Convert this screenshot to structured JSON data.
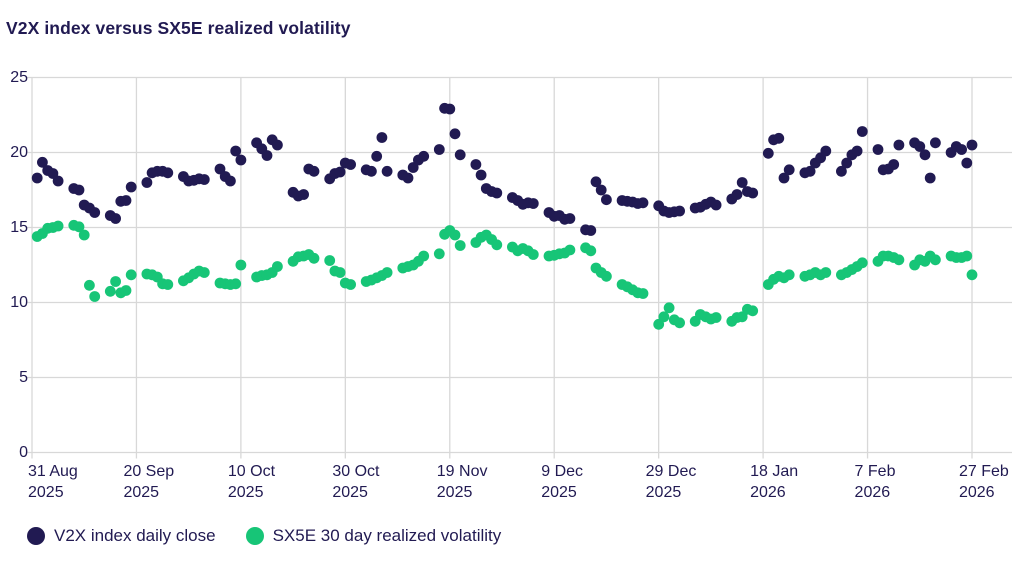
{
  "title": "V2X index versus SX5E realized volatility",
  "legend": [
    {
      "label": "V2X index daily close",
      "color": "#211a52"
    },
    {
      "label": "SX5E 30 day realized volatility",
      "color": "#17c577"
    }
  ],
  "colors": {
    "v2x": "#211a52",
    "sx5e": "#17c577",
    "grid": "#d8d8d8",
    "text": "#211a52",
    "background": "#ffffff"
  },
  "chart_data": {
    "type": "scatter",
    "title": "V2X index versus SX5E realized volatility",
    "xlabel": "",
    "ylabel": "",
    "ylim": [
      0,
      25
    ],
    "y_ticks": [
      0,
      5,
      10,
      15,
      20,
      25
    ],
    "grid": true,
    "legend_position": "bottom-left",
    "x_ticks": [
      {
        "date": "2025-08-31",
        "line1": "31 Aug",
        "line2": "2025"
      },
      {
        "date": "2025-09-20",
        "line1": "20 Sep",
        "line2": "2025"
      },
      {
        "date": "2025-10-10",
        "line1": "10 Oct",
        "line2": "2025"
      },
      {
        "date": "2025-10-30",
        "line1": "30 Oct",
        "line2": "2025"
      },
      {
        "date": "2025-11-19",
        "line1": "19 Nov",
        "line2": "2025"
      },
      {
        "date": "2025-12-09",
        "line1": "9 Dec",
        "line2": "2025"
      },
      {
        "date": "2025-12-29",
        "line1": "29 Dec",
        "line2": "2025"
      },
      {
        "date": "2026-01-18",
        "line1": "18 Jan",
        "line2": "2026"
      },
      {
        "date": "2026-02-07",
        "line1": "7 Feb",
        "line2": "2026"
      },
      {
        "date": "2026-02-27",
        "line1": "27 Feb",
        "line2": "2026"
      }
    ],
    "x": [
      "2025-09-01",
      "2025-09-02",
      "2025-09-03",
      "2025-09-04",
      "2025-09-05",
      "2025-09-08",
      "2025-09-09",
      "2025-09-10",
      "2025-09-11",
      "2025-09-12",
      "2025-09-15",
      "2025-09-16",
      "2025-09-17",
      "2025-09-18",
      "2025-09-19",
      "2025-09-22",
      "2025-09-23",
      "2025-09-24",
      "2025-09-25",
      "2025-09-26",
      "2025-09-29",
      "2025-09-30",
      "2025-10-01",
      "2025-10-02",
      "2025-10-03",
      "2025-10-06",
      "2025-10-07",
      "2025-10-08",
      "2025-10-09",
      "2025-10-10",
      "2025-10-13",
      "2025-10-14",
      "2025-10-15",
      "2025-10-16",
      "2025-10-17",
      "2025-10-20",
      "2025-10-21",
      "2025-10-22",
      "2025-10-23",
      "2025-10-24",
      "2025-10-27",
      "2025-10-28",
      "2025-10-29",
      "2025-10-30",
      "2025-10-31",
      "2025-11-03",
      "2025-11-04",
      "2025-11-05",
      "2025-11-06",
      "2025-11-07",
      "2025-11-10",
      "2025-11-11",
      "2025-11-12",
      "2025-11-13",
      "2025-11-14",
      "2025-11-17",
      "2025-11-18",
      "2025-11-19",
      "2025-11-20",
      "2025-11-21",
      "2025-11-24",
      "2025-11-25",
      "2025-11-26",
      "2025-11-27",
      "2025-11-28",
      "2025-12-01",
      "2025-12-02",
      "2025-12-03",
      "2025-12-04",
      "2025-12-05",
      "2025-12-08",
      "2025-12-09",
      "2025-12-10",
      "2025-12-11",
      "2025-12-12",
      "2025-12-15",
      "2025-12-16",
      "2025-12-17",
      "2025-12-18",
      "2025-12-19",
      "2025-12-22",
      "2025-12-23",
      "2025-12-24",
      "2025-12-25",
      "2025-12-26",
      "2025-12-29",
      "2025-12-30",
      "2025-12-31",
      "2026-01-01",
      "2026-01-02",
      "2026-01-05",
      "2026-01-06",
      "2026-01-07",
      "2026-01-08",
      "2026-01-09",
      "2026-01-12",
      "2026-01-13",
      "2026-01-14",
      "2026-01-15",
      "2026-01-16",
      "2026-01-19",
      "2026-01-20",
      "2026-01-21",
      "2026-01-22",
      "2026-01-23",
      "2026-01-26",
      "2026-01-27",
      "2026-01-28",
      "2026-01-29",
      "2026-01-30",
      "2026-02-02",
      "2026-02-03",
      "2026-02-04",
      "2026-02-05",
      "2026-02-06",
      "2026-02-09",
      "2026-02-10",
      "2026-02-11",
      "2026-02-12",
      "2026-02-13",
      "2026-02-16",
      "2026-02-17",
      "2026-02-18",
      "2026-02-19",
      "2026-02-20",
      "2026-02-23",
      "2026-02-24",
      "2026-02-25",
      "2026-02-26",
      "2026-02-27"
    ],
    "series": [
      {
        "name": "V2X index daily close",
        "color": "#211a52",
        "values": [
          18.3,
          19.35,
          18.8,
          18.6,
          18.1,
          17.6,
          17.5,
          16.5,
          16.3,
          16.0,
          15.8,
          15.6,
          16.75,
          16.8,
          17.7,
          18.0,
          18.65,
          18.75,
          18.75,
          18.65,
          18.4,
          18.1,
          18.15,
          18.25,
          18.2,
          18.9,
          18.4,
          18.1,
          20.1,
          19.5,
          20.65,
          20.25,
          19.8,
          20.85,
          20.5,
          17.35,
          17.1,
          17.2,
          18.9,
          18.75,
          18.25,
          18.6,
          18.7,
          19.3,
          19.2,
          18.85,
          18.75,
          19.75,
          21.0,
          18.75,
          18.5,
          18.3,
          19.0,
          19.5,
          19.75,
          20.2,
          22.95,
          22.9,
          21.25,
          19.85,
          19.2,
          18.5,
          17.6,
          17.4,
          17.3,
          17.0,
          16.8,
          16.55,
          16.65,
          16.6,
          16.0,
          15.75,
          15.8,
          15.55,
          15.6,
          14.85,
          14.8,
          18.05,
          17.5,
          16.85,
          16.8,
          16.75,
          16.7,
          16.6,
          16.65,
          16.45,
          16.1,
          16.0,
          16.05,
          16.1,
          16.3,
          16.35,
          16.55,
          16.7,
          16.5,
          16.9,
          17.2,
          18.0,
          17.4,
          17.3,
          19.95,
          20.85,
          20.95,
          18.3,
          18.85,
          18.65,
          18.75,
          19.3,
          19.65,
          20.1,
          18.75,
          19.3,
          19.85,
          20.1,
          21.4,
          20.2,
          18.85,
          18.9,
          19.2,
          20.5,
          20.65,
          20.4,
          19.85,
          18.3,
          20.65,
          20.0,
          20.4,
          20.2,
          19.3,
          20.5
        ]
      },
      {
        "name": "SX5E 30 day realized volatility",
        "color": "#17c577",
        "values": [
          14.4,
          14.6,
          14.95,
          15.0,
          15.1,
          15.15,
          15.05,
          14.5,
          11.15,
          10.4,
          10.75,
          11.4,
          10.65,
          10.8,
          11.85,
          11.9,
          11.85,
          11.7,
          11.25,
          11.2,
          11.45,
          11.65,
          11.9,
          12.1,
          12.0,
          11.3,
          11.25,
          11.2,
          11.25,
          12.5,
          11.7,
          11.8,
          11.85,
          12.0,
          12.4,
          12.75,
          13.05,
          13.1,
          13.2,
          12.95,
          12.8,
          12.1,
          12.0,
          11.3,
          11.2,
          11.4,
          11.5,
          11.65,
          11.8,
          12.0,
          12.3,
          12.4,
          12.5,
          12.75,
          13.1,
          13.25,
          14.55,
          14.8,
          14.5,
          13.8,
          14.0,
          14.35,
          14.5,
          14.2,
          13.85,
          13.7,
          13.45,
          13.6,
          13.45,
          13.2,
          13.1,
          13.15,
          13.25,
          13.3,
          13.5,
          13.65,
          13.45,
          12.3,
          12.0,
          11.75,
          11.2,
          11.05,
          10.85,
          10.65,
          10.6,
          8.55,
          9.05,
          9.65,
          8.85,
          8.65,
          8.75,
          9.2,
          9.05,
          8.9,
          9.0,
          8.75,
          9.0,
          9.05,
          9.55,
          9.45,
          11.2,
          11.55,
          11.75,
          11.65,
          11.85,
          11.75,
          11.85,
          12.0,
          11.85,
          12.0,
          11.85,
          12.0,
          12.2,
          12.4,
          12.65,
          12.75,
          13.1,
          13.1,
          13.0,
          12.85,
          12.5,
          12.85,
          12.75,
          13.1,
          12.85,
          13.1,
          13.0,
          13.0,
          13.1,
          11.85
        ]
      }
    ]
  }
}
